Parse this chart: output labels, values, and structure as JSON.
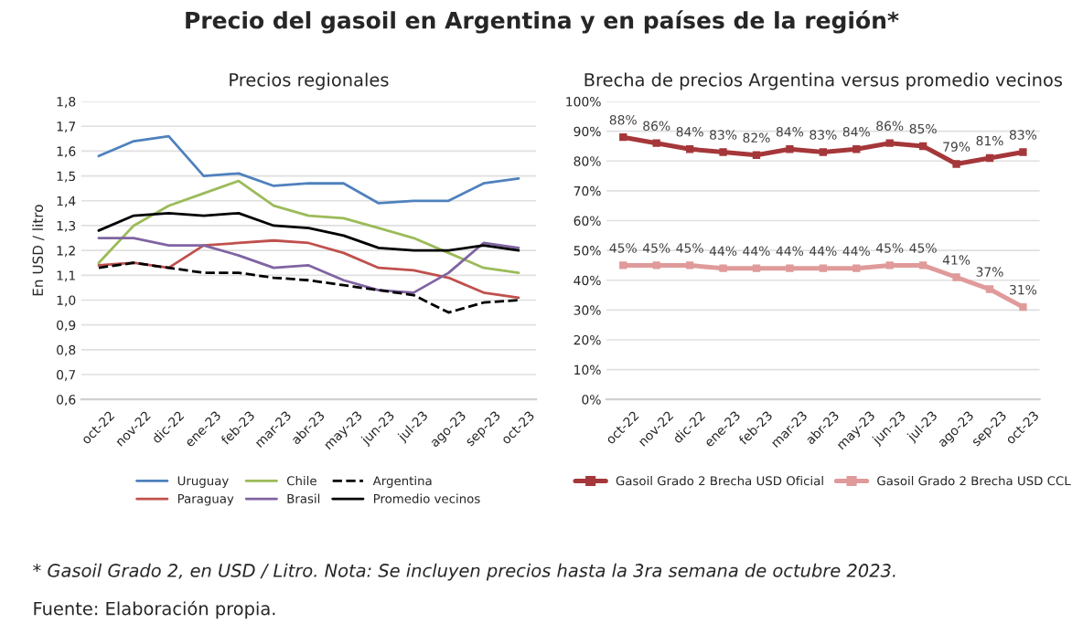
{
  "chart_data": [
    {
      "type": "other",
      "title": "Precio del gasoil en Argentina y en países de la región*",
      "annotations": [
        "* Gasoil Grado 2, en USD / Litro. Nota: Se incluyen precios hasta la 3ra semana de octubre 2023.",
        "Fuente: Elaboración propia."
      ]
    },
    {
      "type": "line",
      "title": "Precios regionales",
      "ylabel": "En USD / litro",
      "categories": [
        "oct-22",
        "nov-22",
        "dic-22",
        "ene-23",
        "feb-23",
        "mar-23",
        "abr-23",
        "may-23",
        "jun-23",
        "jul-23",
        "ago-23",
        "sep-23",
        "oct-23"
      ],
      "series": [
        {
          "name": "Uruguay",
          "color": "#4f81bd",
          "values": [
            1.58,
            1.64,
            1.66,
            1.5,
            1.51,
            1.46,
            1.47,
            1.47,
            1.39,
            1.4,
            1.4,
            1.47,
            1.49
          ]
        },
        {
          "name": "Paraguay",
          "color": "#c0504d",
          "values": [
            1.14,
            1.15,
            1.13,
            1.22,
            1.23,
            1.24,
            1.23,
            1.19,
            1.13,
            1.12,
            1.09,
            1.03,
            1.01
          ]
        },
        {
          "name": "Chile",
          "color": "#9bbb59",
          "values": [
            1.15,
            1.3,
            1.38,
            1.43,
            1.48,
            1.38,
            1.34,
            1.33,
            1.29,
            1.25,
            1.19,
            1.13,
            1.11
          ]
        },
        {
          "name": "Brasil",
          "color": "#8064a2",
          "values": [
            1.25,
            1.25,
            1.22,
            1.22,
            1.18,
            1.13,
            1.14,
            1.08,
            1.04,
            1.03,
            1.11,
            1.23,
            1.21
          ]
        },
        {
          "name": "Argentina",
          "color": "#000000",
          "line_style": "dashed",
          "values": [
            1.13,
            1.15,
            1.13,
            1.11,
            1.11,
            1.09,
            1.08,
            1.06,
            1.04,
            1.02,
            0.95,
            0.99,
            1.0
          ]
        },
        {
          "name": "Promedio vecinos",
          "color": "#000000",
          "values": [
            1.28,
            1.34,
            1.35,
            1.34,
            1.35,
            1.3,
            1.29,
            1.26,
            1.21,
            1.2,
            1.2,
            1.22,
            1.2
          ]
        }
      ],
      "ylim": [
        0.6,
        1.8
      ],
      "yticks": [
        {
          "value": 0.6,
          "label": "0,6"
        },
        {
          "value": 0.7,
          "label": "0,7"
        },
        {
          "value": 0.8,
          "label": "0,8"
        },
        {
          "value": 0.9,
          "label": "0,9"
        },
        {
          "value": 1.0,
          "label": "1,0"
        },
        {
          "value": 1.1,
          "label": "1,1"
        },
        {
          "value": 1.2,
          "label": "1,2"
        },
        {
          "value": 1.3,
          "label": "1,3"
        },
        {
          "value": 1.4,
          "label": "1,4"
        },
        {
          "value": 1.5,
          "label": "1,5"
        },
        {
          "value": 1.6,
          "label": "1,6"
        },
        {
          "value": 1.7,
          "label": "1,7"
        },
        {
          "value": 1.8,
          "label": "1,8"
        }
      ],
      "grid": "y",
      "legend": "bottom",
      "line_style": "solid",
      "marker": "none"
    },
    {
      "type": "line",
      "title": "Brecha de precios Argentina versus promedio vecinos",
      "categories": [
        "oct-22",
        "nov-22",
        "dic-22",
        "ene-23",
        "feb-23",
        "mar-23",
        "abr-23",
        "may-23",
        "jun-23",
        "jul-23",
        "ago-23",
        "sep-23",
        "oct-23"
      ],
      "series": [
        {
          "name": "Gasoil Grado 2 Brecha USD Oficial",
          "color": "#a5373a",
          "values": [
            88,
            86,
            84,
            83,
            82,
            84,
            83,
            84,
            86,
            85,
            79,
            81,
            83
          ],
          "value_labels": [
            "88%",
            "86%",
            "84%",
            "83%",
            "82%",
            "84%",
            "83%",
            "84%",
            "86%",
            "85%",
            "79%",
            "81%",
            "83%"
          ]
        },
        {
          "name": "Gasoil Grado 2 Brecha USD CCL",
          "color": "#e09a9a",
          "values": [
            45,
            45,
            45,
            44,
            44,
            44,
            44,
            44,
            45,
            45,
            41,
            37,
            31
          ],
          "value_labels": [
            "45%",
            "45%",
            "45%",
            "44%",
            "44%",
            "44%",
            "44%",
            "44%",
            "45%",
            "45%",
            "41%",
            "37%",
            "31%"
          ]
        }
      ],
      "ylim": [
        0,
        100
      ],
      "yticks": [
        {
          "value": 0,
          "label": "0%"
        },
        {
          "value": 10,
          "label": "10%"
        },
        {
          "value": 20,
          "label": "20%"
        },
        {
          "value": 30,
          "label": "30%"
        },
        {
          "value": 40,
          "label": "40%"
        },
        {
          "value": 50,
          "label": "50%"
        },
        {
          "value": 60,
          "label": "60%"
        },
        {
          "value": 70,
          "label": "70%"
        },
        {
          "value": 80,
          "label": "80%"
        },
        {
          "value": 90,
          "label": "90%"
        },
        {
          "value": 100,
          "label": "100%"
        }
      ],
      "grid": "y",
      "legend": "bottom",
      "line_style": "solid",
      "marker": "square"
    }
  ]
}
